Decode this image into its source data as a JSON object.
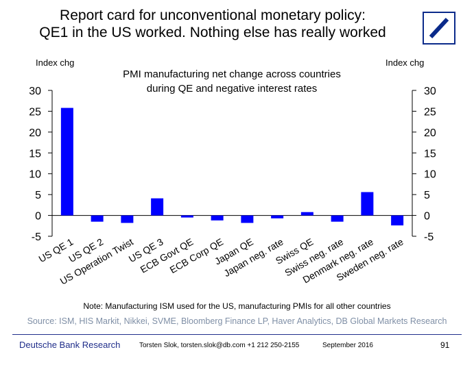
{
  "header": {
    "title_line1": "Report card for unconventional monetary policy:",
    "title_line2": "QE1 in the US worked. Nothing else has really worked"
  },
  "logo": {
    "icon": "deutsche-bank-slash-square",
    "color": "#0a2a8a"
  },
  "chart_data": {
    "type": "bar",
    "title_line1": "PMI manufacturing net change across countries",
    "title_line2": "during QE and negative interest rates",
    "ylabel_left": "Index chg",
    "ylabel_right": "Index chg",
    "ylim": [
      -5,
      30
    ],
    "yticks": [
      -5,
      0,
      5,
      10,
      15,
      20,
      25,
      30
    ],
    "grid": false,
    "bar_color": "#0000ff",
    "categories": [
      "US QE 1",
      "US QE 2",
      "US Operation Twist",
      "US QE 3",
      "ECB Govt QE",
      "ECB Corp QE",
      "Japan QE",
      "Japan neg. rate",
      "Swiss QE",
      "Swiss neg. rate",
      "Denmark neg. rate",
      "Sweden neg. rate"
    ],
    "values": [
      25.8,
      -1.5,
      -1.8,
      4.1,
      -0.5,
      -1.2,
      -1.8,
      -0.7,
      0.8,
      -1.5,
      5.6,
      -2.4
    ]
  },
  "note": "Note: Manufacturing ISM used for the US, manufacturing PMIs for all other countries",
  "source": "Source: ISM, HIS Markit, Nikkei, SVME, Bloomberg Finance LP, Haver Analytics, DB Global Markets Research",
  "footer": {
    "org": "Deutsche Bank Research",
    "contact": "Torsten Slok, torsten.slok@db.com  +1 212 250-2155",
    "date": "September 2016",
    "page": "91"
  }
}
